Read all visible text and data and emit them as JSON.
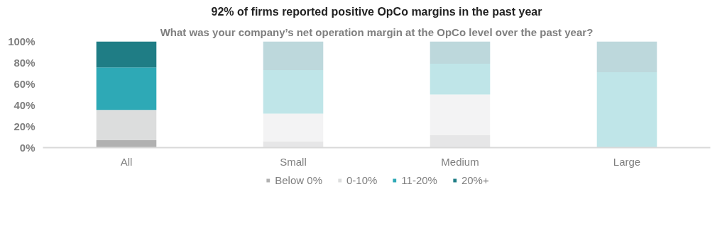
{
  "chart_data": {
    "type": "bar",
    "stacked": true,
    "title": "92% of firms reported positive OpCo margins in the past year",
    "subtitle": "What was your company’s net operation margin at the OpCo level over the past year?",
    "categories": [
      "All",
      "Small",
      "Medium",
      "Large"
    ],
    "series": [
      {
        "name": "Below 0%",
        "color": "#b1b1b1",
        "colors": [
          "#b1b1b1",
          "#e6e6e7",
          "#e6e6e7",
          "#e6e6e7"
        ],
        "values": [
          7,
          6,
          12,
          0
        ]
      },
      {
        "name": "0-10%",
        "color": "#dcdddd",
        "colors": [
          "#dcdddd",
          "#f3f3f4",
          "#f3f3f4",
          "#f3f3f4"
        ],
        "values": [
          28.5,
          26,
          38,
          0
        ]
      },
      {
        "name": "11-20%",
        "color": "#2ea9b6",
        "colors": [
          "#2ea9b6",
          "#bfe5e8",
          "#bfe5e8",
          "#bfe5e8"
        ],
        "values": [
          40,
          41,
          29,
          71
        ]
      },
      {
        "name": "20%+",
        "color": "#1f7d85",
        "colors": [
          "#1f7d85",
          "#bdd8dc",
          "#bdd8dc",
          "#bdd8dc"
        ],
        "values": [
          24.5,
          27,
          21,
          29
        ]
      }
    ],
    "ylim": [
      0,
      100
    ],
    "yticks": [
      {
        "value": 0,
        "label": "0%"
      },
      {
        "value": 20,
        "label": "20%"
      },
      {
        "value": 40,
        "label": "40%"
      },
      {
        "value": 60,
        "label": "60%"
      },
      {
        "value": 80,
        "label": "80%"
      },
      {
        "value": 100,
        "label": "100%"
      }
    ],
    "grid": false,
    "legend": "bottom"
  }
}
